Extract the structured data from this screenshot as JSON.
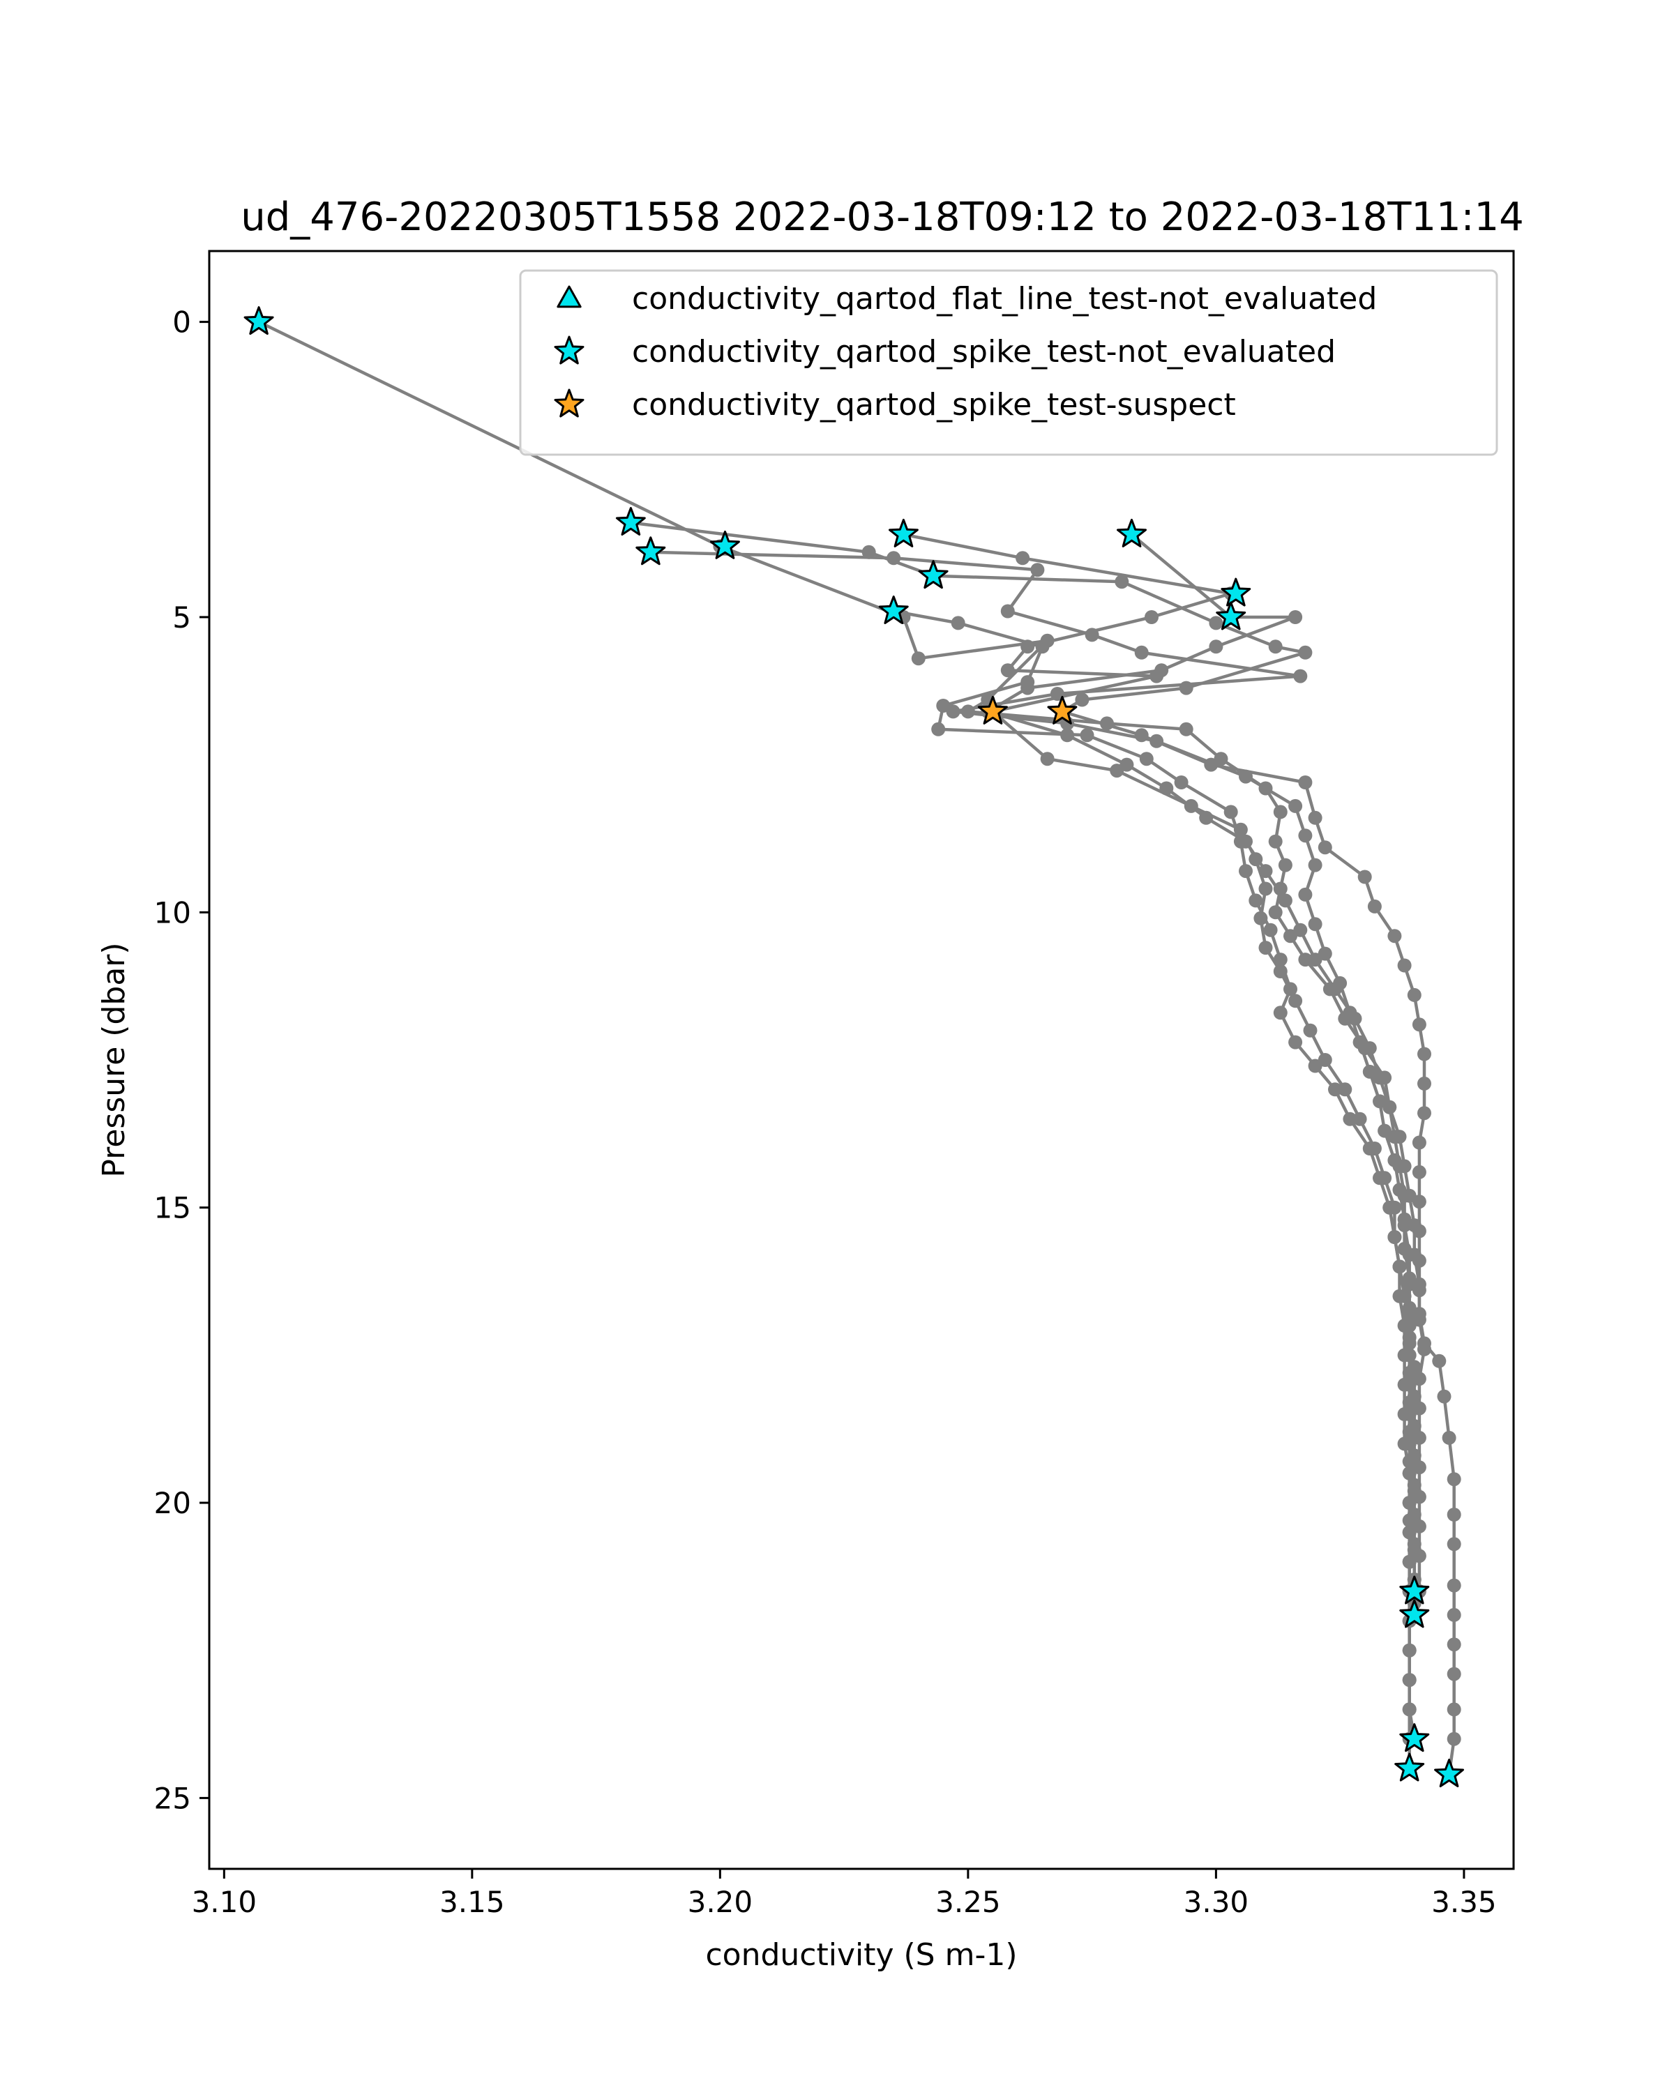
{
  "chart_data": {
    "type": "line",
    "title": "ud_476-20220305T1558 2022-03-18T09:12 to 2022-03-18T11:14",
    "xlabel": "conductivity (S m-1)",
    "ylabel": "Pressure (dbar)",
    "xlim": [
      3.097,
      3.36
    ],
    "ylim": [
      26.2,
      -1.2
    ],
    "y_inverted": true,
    "xticks": [
      3.1,
      3.15,
      3.2,
      3.25,
      3.3,
      3.35
    ],
    "xtick_labels": [
      "3.10",
      "3.15",
      "3.20",
      "3.25",
      "3.30",
      "3.35"
    ],
    "yticks": [
      0,
      5,
      10,
      15,
      20,
      25
    ],
    "ytick_labels": [
      "0",
      "5",
      "10",
      "15",
      "20",
      "25"
    ],
    "grid": false,
    "legend_position": "top-right",
    "colors": {
      "line": "#808080",
      "not_evaluated": "#00e5ee",
      "suspect": "#ffa51f",
      "edge": "#000000"
    },
    "legend": [
      {
        "label": "conductivity_qartod_flat_line_test-not_evaluated",
        "marker": "triangle",
        "color": "#00e5ee"
      },
      {
        "label": "conductivity_qartod_spike_test-not_evaluated",
        "marker": "star",
        "color": "#00e5ee"
      },
      {
        "label": "conductivity_qartod_spike_test-suspect",
        "marker": "star",
        "color": "#ffa51f"
      }
    ],
    "profiles": [
      {
        "name": "profile-1",
        "points": [
          [
            3.107,
            0.0
          ],
          [
            3.2,
            3.8
          ],
          [
            3.237,
            5.0
          ],
          [
            3.24,
            5.7
          ],
          [
            3.266,
            5.4
          ],
          [
            3.254,
            6.4
          ],
          [
            3.25,
            6.6
          ],
          [
            3.278,
            6.8
          ],
          [
            3.294,
            6.9
          ],
          [
            3.301,
            7.4
          ],
          [
            3.31,
            7.9
          ],
          [
            3.313,
            8.3
          ],
          [
            3.312,
            8.8
          ],
          [
            3.314,
            9.2
          ],
          [
            3.313,
            9.6
          ],
          [
            3.312,
            10.0
          ],
          [
            3.315,
            10.4
          ],
          [
            3.318,
            10.8
          ],
          [
            3.323,
            11.3
          ],
          [
            3.326,
            11.8
          ],
          [
            3.33,
            12.3
          ],
          [
            3.334,
            12.8
          ],
          [
            3.335,
            13.3
          ],
          [
            3.336,
            13.8
          ],
          [
            3.337,
            14.3
          ],
          [
            3.338,
            14.8
          ],
          [
            3.338,
            15.3
          ],
          [
            3.339,
            15.8
          ],
          [
            3.339,
            16.3
          ],
          [
            3.339,
            16.8
          ],
          [
            3.339,
            17.3
          ],
          [
            3.339,
            17.8
          ],
          [
            3.339,
            18.3
          ],
          [
            3.339,
            18.8
          ],
          [
            3.339,
            19.3
          ],
          [
            3.34,
            19.8
          ],
          [
            3.339,
            20.3
          ],
          [
            3.34,
            20.8
          ],
          [
            3.34,
            21.3
          ],
          [
            3.34,
            21.7
          ]
        ]
      },
      {
        "name": "profile-2",
        "points": [
          [
            3.182,
            3.4
          ],
          [
            3.23,
            3.9
          ],
          [
            3.243,
            4.3
          ],
          [
            3.281,
            4.4
          ],
          [
            3.3,
            5.1
          ],
          [
            3.312,
            5.5
          ],
          [
            3.318,
            5.6
          ],
          [
            3.294,
            6.2
          ],
          [
            3.273,
            6.4
          ],
          [
            3.269,
            6.6
          ],
          [
            3.285,
            7.0
          ],
          [
            3.299,
            7.5
          ],
          [
            3.318,
            7.8
          ],
          [
            3.32,
            8.4
          ],
          [
            3.322,
            8.9
          ],
          [
            3.33,
            9.4
          ],
          [
            3.332,
            9.9
          ],
          [
            3.336,
            10.4
          ],
          [
            3.338,
            10.9
          ],
          [
            3.34,
            11.4
          ],
          [
            3.341,
            11.9
          ],
          [
            3.342,
            12.4
          ],
          [
            3.342,
            12.9
          ],
          [
            3.342,
            13.4
          ],
          [
            3.341,
            13.9
          ],
          [
            3.341,
            14.4
          ],
          [
            3.341,
            14.9
          ],
          [
            3.341,
            15.4
          ],
          [
            3.341,
            15.9
          ],
          [
            3.341,
            16.4
          ],
          [
            3.341,
            16.9
          ],
          [
            3.342,
            17.4
          ],
          [
            3.341,
            17.9
          ],
          [
            3.341,
            18.4
          ],
          [
            3.341,
            18.9
          ],
          [
            3.341,
            19.4
          ],
          [
            3.341,
            19.9
          ],
          [
            3.341,
            20.4
          ],
          [
            3.341,
            20.9
          ],
          [
            3.341,
            21.5
          ]
        ]
      },
      {
        "name": "profile-3",
        "points": [
          [
            3.186,
            3.9
          ],
          [
            3.235,
            4.0
          ],
          [
            3.264,
            4.2
          ],
          [
            3.258,
            4.9
          ],
          [
            3.275,
            5.3
          ],
          [
            3.285,
            5.6
          ],
          [
            3.317,
            6.0
          ],
          [
            3.268,
            6.3
          ],
          [
            3.247,
            6.6
          ],
          [
            3.27,
            6.8
          ],
          [
            3.288,
            7.1
          ],
          [
            3.306,
            7.7
          ],
          [
            3.316,
            8.2
          ],
          [
            3.318,
            8.7
          ],
          [
            3.32,
            9.2
          ],
          [
            3.318,
            9.7
          ],
          [
            3.32,
            10.2
          ],
          [
            3.322,
            10.7
          ],
          [
            3.325,
            11.2
          ],
          [
            3.327,
            11.7
          ],
          [
            3.329,
            12.2
          ],
          [
            3.331,
            12.7
          ],
          [
            3.333,
            13.2
          ],
          [
            3.334,
            13.7
          ],
          [
            3.336,
            14.2
          ],
          [
            3.337,
            14.7
          ],
          [
            3.338,
            15.2
          ],
          [
            3.338,
            15.7
          ],
          [
            3.339,
            16.2
          ],
          [
            3.339,
            16.7
          ],
          [
            3.339,
            17.2
          ],
          [
            3.34,
            17.7
          ],
          [
            3.34,
            18.2
          ],
          [
            3.34,
            18.7
          ],
          [
            3.34,
            19.2
          ],
          [
            3.34,
            19.7
          ],
          [
            3.34,
            20.2
          ],
          [
            3.34,
            20.7
          ],
          [
            3.34,
            21.3
          ],
          [
            3.34,
            21.9
          ]
        ]
      },
      {
        "name": "profile-4",
        "points": [
          [
            3.237,
            3.6
          ],
          [
            3.261,
            4.0
          ],
          [
            3.303,
            4.6
          ],
          [
            3.287,
            5.0
          ],
          [
            3.262,
            5.5
          ],
          [
            3.258,
            5.9
          ],
          [
            3.288,
            6.0
          ],
          [
            3.255,
            6.6
          ],
          [
            3.266,
            7.4
          ],
          [
            3.28,
            7.6
          ],
          [
            3.295,
            8.2
          ],
          [
            3.305,
            8.6
          ],
          [
            3.308,
            9.1
          ],
          [
            3.31,
            9.6
          ],
          [
            3.309,
            10.1
          ],
          [
            3.31,
            10.6
          ],
          [
            3.313,
            11.0
          ],
          [
            3.316,
            11.5
          ],
          [
            3.319,
            12.0
          ],
          [
            3.322,
            12.5
          ],
          [
            3.326,
            13.0
          ],
          [
            3.329,
            13.5
          ],
          [
            3.332,
            14.0
          ],
          [
            3.334,
            14.5
          ],
          [
            3.336,
            15.0
          ],
          [
            3.336,
            15.5
          ],
          [
            3.337,
            16.0
          ],
          [
            3.338,
            16.5
          ],
          [
            3.339,
            17.0
          ],
          [
            3.339,
            17.5
          ],
          [
            3.339,
            18.0
          ],
          [
            3.339,
            18.5
          ],
          [
            3.339,
            19.0
          ],
          [
            3.339,
            19.5
          ],
          [
            3.339,
            20.0
          ],
          [
            3.339,
            20.5
          ],
          [
            3.339,
            21.0
          ],
          [
            3.339,
            21.5
          ],
          [
            3.339,
            22.0
          ],
          [
            3.339,
            22.5
          ],
          [
            3.339,
            23.0
          ],
          [
            3.339,
            23.5
          ],
          [
            3.34,
            24.0
          ]
        ]
      },
      {
        "name": "profile-5",
        "points": [
          [
            3.235,
            4.9
          ],
          [
            3.248,
            5.1
          ],
          [
            3.265,
            5.5
          ],
          [
            3.262,
            6.1
          ],
          [
            3.245,
            6.5
          ],
          [
            3.244,
            6.9
          ],
          [
            3.274,
            7.0
          ],
          [
            3.286,
            7.4
          ],
          [
            3.293,
            7.8
          ],
          [
            3.303,
            8.3
          ],
          [
            3.305,
            8.8
          ],
          [
            3.306,
            9.3
          ],
          [
            3.308,
            9.8
          ],
          [
            3.311,
            10.3
          ],
          [
            3.313,
            10.8
          ],
          [
            3.315,
            11.3
          ],
          [
            3.313,
            11.7
          ],
          [
            3.316,
            12.2
          ],
          [
            3.32,
            12.6
          ],
          [
            3.324,
            13.0
          ],
          [
            3.327,
            13.5
          ],
          [
            3.331,
            14.0
          ],
          [
            3.333,
            14.5
          ],
          [
            3.335,
            15.0
          ],
          [
            3.336,
            15.5
          ],
          [
            3.337,
            16.0
          ],
          [
            3.337,
            16.5
          ],
          [
            3.338,
            17.0
          ],
          [
            3.338,
            17.5
          ],
          [
            3.338,
            18.0
          ],
          [
            3.338,
            18.5
          ],
          [
            3.338,
            19.0
          ],
          [
            3.339,
            19.5
          ],
          [
            3.339,
            20.0
          ],
          [
            3.339,
            20.5
          ],
          [
            3.339,
            21.0
          ],
          [
            3.339,
            21.5
          ],
          [
            3.339,
            22.0
          ],
          [
            3.339,
            22.5
          ],
          [
            3.339,
            23.0
          ],
          [
            3.339,
            23.5
          ],
          [
            3.339,
            24.0
          ],
          [
            3.339,
            24.5
          ]
        ]
      },
      {
        "name": "profile-6",
        "points": [
          [
            3.283,
            3.6
          ],
          [
            3.303,
            5.0
          ],
          [
            3.316,
            5.0
          ],
          [
            3.3,
            5.5
          ],
          [
            3.289,
            5.9
          ],
          [
            3.262,
            6.2
          ],
          [
            3.254,
            6.6
          ],
          [
            3.27,
            7.0
          ],
          [
            3.282,
            7.5
          ],
          [
            3.29,
            7.9
          ],
          [
            3.298,
            8.4
          ],
          [
            3.306,
            8.8
          ],
          [
            3.31,
            9.3
          ],
          [
            3.314,
            9.8
          ],
          [
            3.317,
            10.3
          ],
          [
            3.32,
            10.8
          ],
          [
            3.324,
            11.3
          ],
          [
            3.328,
            11.8
          ],
          [
            3.331,
            12.3
          ],
          [
            3.333,
            12.8
          ],
          [
            3.335,
            13.3
          ],
          [
            3.337,
            13.8
          ],
          [
            3.338,
            14.3
          ],
          [
            3.339,
            14.8
          ],
          [
            3.34,
            15.3
          ],
          [
            3.34,
            15.8
          ],
          [
            3.341,
            16.3
          ],
          [
            3.341,
            16.8
          ],
          [
            3.342,
            17.3
          ],
          [
            3.345,
            17.6
          ],
          [
            3.346,
            18.2
          ],
          [
            3.347,
            18.9
          ],
          [
            3.348,
            19.6
          ],
          [
            3.348,
            20.2
          ],
          [
            3.348,
            20.7
          ],
          [
            3.348,
            21.4
          ],
          [
            3.348,
            21.9
          ],
          [
            3.348,
            22.4
          ],
          [
            3.348,
            22.9
          ],
          [
            3.348,
            23.5
          ],
          [
            3.348,
            24.0
          ],
          [
            3.347,
            24.6
          ]
        ]
      }
    ],
    "flags": [
      {
        "x": 3.107,
        "y": 0.0,
        "flag": "not_evaluated"
      },
      {
        "x": 3.182,
        "y": 3.4,
        "flag": "not_evaluated"
      },
      {
        "x": 3.186,
        "y": 3.9,
        "flag": "not_evaluated"
      },
      {
        "x": 3.201,
        "y": 3.8,
        "flag": "not_evaluated"
      },
      {
        "x": 3.237,
        "y": 3.6,
        "flag": "not_evaluated"
      },
      {
        "x": 3.243,
        "y": 4.3,
        "flag": "not_evaluated"
      },
      {
        "x": 3.235,
        "y": 4.9,
        "flag": "not_evaluated"
      },
      {
        "x": 3.283,
        "y": 3.6,
        "flag": "not_evaluated"
      },
      {
        "x": 3.304,
        "y": 4.6,
        "flag": "not_evaluated"
      },
      {
        "x": 3.303,
        "y": 5.0,
        "flag": "not_evaluated"
      },
      {
        "x": 3.255,
        "y": 6.6,
        "flag": "suspect"
      },
      {
        "x": 3.269,
        "y": 6.6,
        "flag": "suspect"
      },
      {
        "x": 3.34,
        "y": 21.5,
        "flag": "not_evaluated"
      },
      {
        "x": 3.34,
        "y": 21.9,
        "flag": "not_evaluated"
      },
      {
        "x": 3.34,
        "y": 24.0,
        "flag": "not_evaluated"
      },
      {
        "x": 3.339,
        "y": 24.5,
        "flag": "not_evaluated"
      },
      {
        "x": 3.347,
        "y": 24.6,
        "flag": "not_evaluated"
      }
    ]
  }
}
